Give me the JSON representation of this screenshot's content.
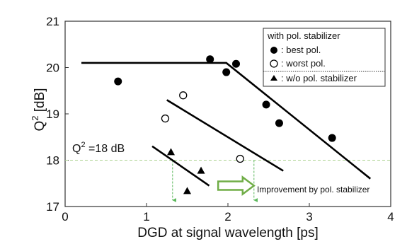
{
  "chart_data": {
    "type": "scatter",
    "xlabel": "DGD at signal wavelength [ps]",
    "ylabel": "Q",
    "ylabel_sup": "2",
    "ylabel_unit": " [dB]",
    "xlim": [
      0,
      4
    ],
    "ylim": [
      17,
      21
    ],
    "xticks": [
      "0",
      "1",
      "2",
      "3",
      "4"
    ],
    "yticks": [
      "17",
      "18",
      "19",
      "20",
      "21"
    ],
    "grid": false,
    "legend_placement": "top-right",
    "legend": {
      "header": "with pol. stabilizer",
      "entries": [
        {
          "marker": "filled-circle",
          "label": ": best pol."
        },
        {
          "marker": "open-circle",
          "label": ": worst pol."
        },
        {
          "marker": "filled-triangle",
          "label": ": w/o pol. stabilizer"
        }
      ]
    },
    "series": [
      {
        "marker": "filled-circle",
        "points": [
          [
            0.65,
            19.7
          ],
          [
            1.78,
            20.18
          ],
          [
            1.98,
            19.9
          ],
          [
            2.1,
            20.08
          ],
          [
            2.47,
            19.2
          ],
          [
            2.63,
            18.8
          ],
          [
            3.28,
            18.48
          ]
        ]
      },
      {
        "marker": "open-circle",
        "points": [
          [
            1.23,
            18.9
          ],
          [
            1.45,
            19.4
          ],
          [
            2.15,
            18.03
          ]
        ]
      },
      {
        "marker": "filled-triangle",
        "points": [
          [
            1.3,
            18.17
          ],
          [
            1.67,
            17.77
          ],
          [
            1.5,
            17.33
          ]
        ]
      }
    ],
    "fit_lines": [
      {
        "points": [
          [
            0.2,
            20.1
          ],
          [
            1.98,
            20.1
          ],
          [
            3.75,
            17.6
          ]
        ]
      },
      {
        "points": [
          [
            1.25,
            19.3
          ],
          [
            2.68,
            17.77
          ]
        ]
      },
      {
        "points": [
          [
            1.07,
            18.3
          ],
          [
            1.77,
            17.45
          ]
        ]
      }
    ],
    "threshold": {
      "y": 18,
      "color": "#a9d18e"
    },
    "drops": [
      {
        "x": 1.32
      },
      {
        "x": 2.32
      }
    ],
    "arrow": {
      "x_from": 1.88,
      "x_to": 2.32,
      "y": 17.45,
      "color": "#70ad47"
    },
    "annotations": {
      "q_label_main": "Q",
      "q_label_sup": "2",
      "q_label_rest": " =18 dB",
      "improvement": "Improvement by pol. stabilizer"
    },
    "colors": {
      "threshold": "#a9d18e",
      "drop_arrow": "#5cb85c",
      "big_arrow": "#70ad47",
      "marker": "#000000"
    }
  }
}
